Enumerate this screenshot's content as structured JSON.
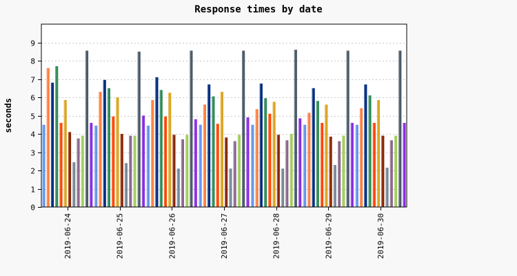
{
  "chart_data": {
    "type": "bar",
    "title": "Response times by date",
    "xlabel": "",
    "ylabel": "seconds",
    "ylim": [
      0,
      10
    ],
    "yticks": [
      0,
      1,
      2,
      3,
      4,
      5,
      6,
      7,
      8,
      9
    ],
    "grid": true,
    "legend": "none",
    "categories": [
      "2019-06-24",
      "2019-06-25",
      "2019-06-26",
      "2019-06-27",
      "2019-06-28",
      "2019-06-29",
      "2019-06-30"
    ],
    "series": [
      {
        "color": "#6495ed",
        "values": [
          4.5,
          4.45,
          4.45,
          4.5,
          4.5,
          4.5,
          4.5
        ]
      },
      {
        "color": "#ff7f3f",
        "values": [
          7.6,
          6.3,
          5.85,
          5.6,
          5.35,
          5.15,
          5.4
        ]
      },
      {
        "color": "#002b7f",
        "values": [
          6.8,
          6.95,
          7.1,
          6.7,
          6.75,
          6.5,
          6.7
        ]
      },
      {
        "color": "#2e8b57",
        "values": [
          7.7,
          6.5,
          6.4,
          6.05,
          5.95,
          5.8,
          6.1
        ]
      },
      {
        "color": "#ff4500",
        "values": [
          4.6,
          4.95,
          4.95,
          4.55,
          5.1,
          4.6,
          4.6
        ]
      },
      {
        "color": "#daa520",
        "values": [
          5.85,
          6.0,
          6.25,
          6.3,
          5.75,
          5.6,
          5.85
        ]
      },
      {
        "color": "#8b2500",
        "values": [
          4.1,
          4.0,
          3.95,
          3.8,
          3.95,
          3.85,
          3.9
        ]
      },
      {
        "color": "#778899",
        "values": [
          2.45,
          2.4,
          2.1,
          2.1,
          2.1,
          2.3,
          2.15
        ]
      },
      {
        "color": "#8b668b",
        "values": [
          3.75,
          3.9,
          3.7,
          3.6,
          3.65,
          3.6,
          3.65
        ]
      },
      {
        "color": "#a2cd5a",
        "values": [
          3.9,
          3.9,
          3.95,
          3.95,
          4.0,
          3.9,
          3.9
        ]
      },
      {
        "color": "#4a5a68",
        "values": [
          8.55,
          8.5,
          8.55,
          8.55,
          8.6,
          8.55,
          8.55
        ]
      },
      {
        "color": "#8a2be2",
        "values": [
          4.6,
          5.0,
          4.8,
          4.9,
          4.85,
          4.6,
          4.6
        ]
      }
    ]
  }
}
